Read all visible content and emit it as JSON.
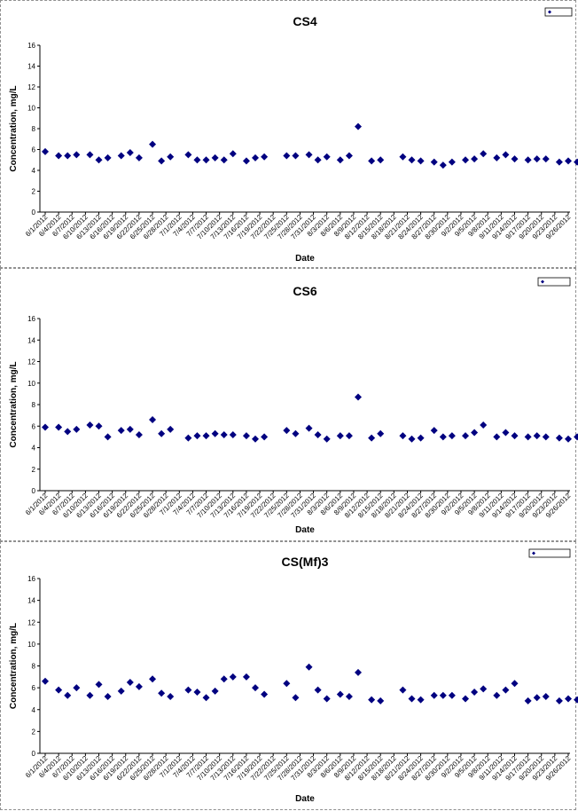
{
  "chart_data": [
    {
      "type": "scatter",
      "title": "CS4",
      "xlabel": "Date",
      "ylabel": "Concentration, mg/L",
      "ylim": [
        0,
        16
      ],
      "yticks": [
        0,
        2,
        4,
        6,
        8,
        10,
        12,
        14,
        16
      ],
      "x_ticks": [
        "6/1/2012",
        "6/4/2012",
        "6/7/2012",
        "6/10/2012",
        "6/13/2012",
        "6/16/2012",
        "6/19/2012",
        "6/22/2012",
        "6/25/2012",
        "6/28/2012",
        "7/1/2012",
        "7/4/2012",
        "7/7/2012",
        "7/10/2012",
        "7/13/2012",
        "7/16/2012",
        "7/19/2012",
        "7/22/2012",
        "7/25/2012",
        "7/28/2012",
        "7/31/2012",
        "8/3/2012",
        "8/6/2012",
        "8/9/2012",
        "8/12/2012",
        "8/15/2012",
        "8/18/2012",
        "8/21/2012",
        "8/24/2012",
        "8/27/2012",
        "8/30/2012",
        "9/2/2012",
        "9/5/2012",
        "9/8/2012",
        "9/11/2012",
        "9/14/2012",
        "9/17/2012",
        "9/20/2012",
        "9/23/2012",
        "9/26/2012"
      ],
      "legend": "top-right",
      "marker_color": "#000080",
      "series": [
        {
          "x": [
            "6/1/2012",
            "6/4/2012",
            "6/6/2012",
            "6/8/2012",
            "6/11/2012",
            "6/13/2012",
            "6/15/2012",
            "6/18/2012",
            "6/20/2012",
            "6/22/2012",
            "6/25/2012",
            "6/27/2012",
            "6/29/2012",
            "7/3/2012",
            "7/5/2012",
            "7/7/2012",
            "7/9/2012",
            "7/11/2012",
            "7/13/2012",
            "7/16/2012",
            "7/18/2012",
            "7/20/2012",
            "7/25/2012",
            "7/27/2012",
            "7/30/2012",
            "8/1/2012",
            "8/3/2012",
            "8/6/2012",
            "8/8/2012",
            "8/10/2012",
            "8/13/2012",
            "8/15/2012",
            "8/20/2012",
            "8/22/2012",
            "8/24/2012",
            "8/27/2012",
            "8/29/2012",
            "8/31/2012",
            "9/3/2012",
            "9/5/2012",
            "9/7/2012",
            "9/10/2012",
            "9/12/2012",
            "9/14/2012",
            "9/17/2012",
            "9/19/2012",
            "9/21/2012",
            "9/24/2012",
            "9/26/2012",
            "9/28/2012"
          ],
          "y": [
            5.8,
            5.4,
            5.4,
            5.5,
            5.5,
            5.0,
            5.2,
            5.4,
            5.7,
            5.2,
            6.5,
            4.9,
            5.3,
            5.5,
            5.0,
            5.0,
            5.2,
            5.0,
            5.6,
            4.9,
            5.2,
            5.3,
            5.4,
            5.4,
            5.5,
            5.0,
            5.3,
            5.0,
            5.4,
            8.2,
            4.9,
            5.0,
            5.3,
            5.0,
            4.9,
            4.8,
            4.5,
            4.8,
            5.0,
            5.1,
            5.6,
            5.2,
            5.5,
            5.1,
            5.0,
            5.1,
            5.1,
            4.8,
            4.9,
            4.8
          ]
        }
      ]
    },
    {
      "type": "scatter",
      "title": "CS6",
      "xlabel": "Date",
      "ylabel": "Concentration, mg/L",
      "ylim": [
        0,
        16
      ],
      "yticks": [
        0,
        2,
        4,
        6,
        8,
        10,
        12,
        14,
        16
      ],
      "x_ticks": [
        "6/1/2012",
        "6/4/2012",
        "6/7/2012",
        "6/10/2012",
        "6/13/2012",
        "6/16/2012",
        "6/19/2012",
        "6/22/2012",
        "6/25/2012",
        "6/28/2012",
        "7/1/2012",
        "7/4/2012",
        "7/7/2012",
        "7/10/2012",
        "7/13/2012",
        "7/16/2012",
        "7/19/2012",
        "7/22/2012",
        "7/25/2012",
        "7/28/2012",
        "7/31/2012",
        "8/3/2012",
        "8/6/2012",
        "8/9/2012",
        "8/12/2012",
        "8/15/2012",
        "8/18/2012",
        "8/21/2012",
        "8/24/2012",
        "8/27/2012",
        "8/30/2012",
        "9/2/2012",
        "9/5/2012",
        "9/8/2012",
        "9/11/2012",
        "9/14/2012",
        "9/17/2012",
        "9/20/2012",
        "9/23/2012",
        "9/26/2012"
      ],
      "legend": "top-right",
      "marker_color": "#000080",
      "series": [
        {
          "x": [
            "6/1/2012",
            "6/4/2012",
            "6/6/2012",
            "6/8/2012",
            "6/11/2012",
            "6/13/2012",
            "6/15/2012",
            "6/18/2012",
            "6/20/2012",
            "6/22/2012",
            "6/25/2012",
            "6/27/2012",
            "6/29/2012",
            "7/3/2012",
            "7/5/2012",
            "7/7/2012",
            "7/9/2012",
            "7/11/2012",
            "7/13/2012",
            "7/16/2012",
            "7/18/2012",
            "7/20/2012",
            "7/25/2012",
            "7/27/2012",
            "7/30/2012",
            "8/1/2012",
            "8/3/2012",
            "8/6/2012",
            "8/8/2012",
            "8/10/2012",
            "8/13/2012",
            "8/15/2012",
            "8/20/2012",
            "8/22/2012",
            "8/24/2012",
            "8/27/2012",
            "8/29/2012",
            "8/31/2012",
            "9/3/2012",
            "9/5/2012",
            "9/7/2012",
            "9/10/2012",
            "9/12/2012",
            "9/14/2012",
            "9/17/2012",
            "9/19/2012",
            "9/21/2012",
            "9/24/2012",
            "9/26/2012",
            "9/28/2012"
          ],
          "y": [
            5.9,
            5.9,
            5.5,
            5.7,
            6.1,
            6.0,
            5.0,
            5.6,
            5.7,
            5.2,
            6.6,
            5.3,
            5.7,
            4.9,
            5.1,
            5.1,
            5.3,
            5.2,
            5.2,
            5.1,
            4.8,
            5.0,
            5.6,
            5.3,
            5.8,
            5.2,
            4.8,
            5.1,
            5.1,
            8.7,
            4.9,
            5.3,
            5.1,
            4.8,
            4.9,
            5.6,
            5.0,
            5.1,
            5.1,
            5.4,
            6.1,
            5.0,
            5.4,
            5.1,
            5.0,
            5.1,
            5.0,
            4.9,
            4.8,
            5.0
          ]
        }
      ]
    },
    {
      "type": "scatter",
      "title": "CS(Mf)3",
      "xlabel": "Date",
      "ylabel": "Concentration, mg/L",
      "ylim": [
        0,
        16
      ],
      "yticks": [
        0,
        2,
        4,
        6,
        8,
        10,
        12,
        14,
        16
      ],
      "x_ticks": [
        "6/1/2012",
        "6/4/2012",
        "6/7/2012",
        "6/10/2012",
        "6/13/2012",
        "6/16/2012",
        "6/19/2012",
        "6/22/2012",
        "6/25/2012",
        "6/28/2012",
        "7/1/2012",
        "7/4/2012",
        "7/7/2012",
        "7/10/2012",
        "7/13/2012",
        "7/16/2012",
        "7/19/2012",
        "7/22/2012",
        "7/25/2012",
        "7/28/2012",
        "7/31/2012",
        "8/3/2012",
        "8/6/2012",
        "8/9/2012",
        "8/12/2012",
        "8/15/2012",
        "8/18/2012",
        "8/21/2012",
        "8/24/2012",
        "8/27/2012",
        "8/30/2012",
        "9/2/2012",
        "9/5/2012",
        "9/8/2012",
        "9/11/2012",
        "9/14/2012",
        "9/17/2012",
        "9/20/2012",
        "9/23/2012",
        "9/26/2012"
      ],
      "legend": "top-right",
      "marker_color": "#000080",
      "series": [
        {
          "x": [
            "6/1/2012",
            "6/4/2012",
            "6/6/2012",
            "6/8/2012",
            "6/11/2012",
            "6/13/2012",
            "6/15/2012",
            "6/18/2012",
            "6/20/2012",
            "6/22/2012",
            "6/25/2012",
            "6/27/2012",
            "6/29/2012",
            "7/3/2012",
            "7/5/2012",
            "7/7/2012",
            "7/9/2012",
            "7/11/2012",
            "7/13/2012",
            "7/16/2012",
            "7/18/2012",
            "7/20/2012",
            "7/25/2012",
            "7/27/2012",
            "7/30/2012",
            "8/1/2012",
            "8/3/2012",
            "8/6/2012",
            "8/8/2012",
            "8/10/2012",
            "8/13/2012",
            "8/15/2012",
            "8/20/2012",
            "8/22/2012",
            "8/24/2012",
            "8/27/2012",
            "8/29/2012",
            "8/31/2012",
            "9/3/2012",
            "9/5/2012",
            "9/7/2012",
            "9/10/2012",
            "9/12/2012",
            "9/14/2012",
            "9/17/2012",
            "9/19/2012",
            "9/21/2012",
            "9/24/2012",
            "9/26/2012",
            "9/28/2012"
          ],
          "y": [
            6.6,
            5.8,
            5.3,
            6.0,
            5.3,
            6.3,
            5.2,
            5.7,
            6.5,
            6.1,
            6.8,
            5.5,
            5.2,
            5.8,
            5.6,
            5.1,
            5.7,
            6.8,
            7.0,
            7.0,
            6.0,
            5.4,
            6.4,
            5.1,
            7.9,
            5.8,
            5.0,
            5.4,
            5.2,
            7.4,
            4.9,
            4.8,
            5.8,
            5.0,
            4.9,
            5.3,
            5.3,
            5.3,
            5.0,
            5.6,
            5.9,
            5.3,
            5.8,
            6.4,
            4.8,
            5.1,
            5.2,
            4.8,
            5.0,
            4.9
          ]
        }
      ]
    }
  ]
}
